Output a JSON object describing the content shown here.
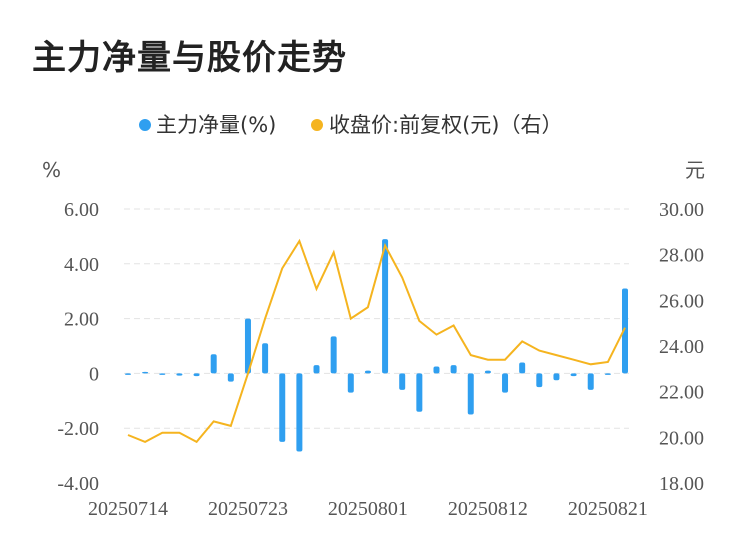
{
  "page": {
    "title": "主力净量与股价走势"
  },
  "colors": {
    "bar": "#2f9ff0",
    "line": "#f5b41f",
    "grid": "#e3e3e3",
    "text": "#555555"
  },
  "chart_data": {
    "type": "bar+line",
    "legend": {
      "position": "top",
      "items": [
        {
          "label": "主力净量(%)",
          "color": "#2f9ff0"
        },
        {
          "label": "收盘价:前复权(元)（右）",
          "color": "#f5b41f"
        }
      ]
    },
    "left_axis": {
      "unit": "%",
      "range": [
        -4,
        6
      ],
      "ticks": [
        "6.00",
        "4.00",
        "2.00",
        "0",
        "-2.00",
        "-4.00"
      ],
      "tick_values": [
        6,
        4,
        2,
        0,
        -2,
        -4
      ]
    },
    "right_axis": {
      "unit": "元",
      "range": [
        18,
        30
      ],
      "ticks": [
        "30.00",
        "28.00",
        "26.00",
        "24.00",
        "22.00",
        "20.00",
        "18.00"
      ],
      "tick_values": [
        30,
        28,
        26,
        24,
        22,
        20,
        18
      ]
    },
    "x_tick_labels": [
      "20250714",
      "20250723",
      "20250801",
      "20250812",
      "20250821"
    ],
    "x_tick_indices": [
      0,
      7,
      14,
      21,
      28
    ],
    "grid": true,
    "series": [
      {
        "name": "主力净量(%)",
        "kind": "bar",
        "axis": "left",
        "values": [
          -0.05,
          0.05,
          -0.05,
          -0.08,
          -0.1,
          0.7,
          -0.3,
          2.0,
          1.1,
          -2.5,
          -2.85,
          0.3,
          1.35,
          -0.7,
          0.1,
          4.9,
          -0.6,
          -1.4,
          0.25,
          0.3,
          -1.5,
          0.1,
          -0.7,
          0.4,
          -0.5,
          -0.25,
          -0.1,
          -0.6,
          -0.05,
          3.1
        ]
      },
      {
        "name": "收盘价:前复权(元)（右）",
        "kind": "line",
        "axis": "right",
        "values": [
          20.1,
          19.8,
          20.2,
          20.2,
          19.8,
          20.7,
          20.5,
          22.8,
          25.2,
          27.4,
          28.6,
          26.5,
          28.1,
          25.2,
          25.7,
          28.4,
          27.0,
          25.1,
          24.5,
          24.9,
          23.6,
          23.4,
          23.4,
          24.2,
          23.8,
          23.6,
          23.4,
          23.2,
          23.3,
          24.8
        ]
      }
    ]
  }
}
